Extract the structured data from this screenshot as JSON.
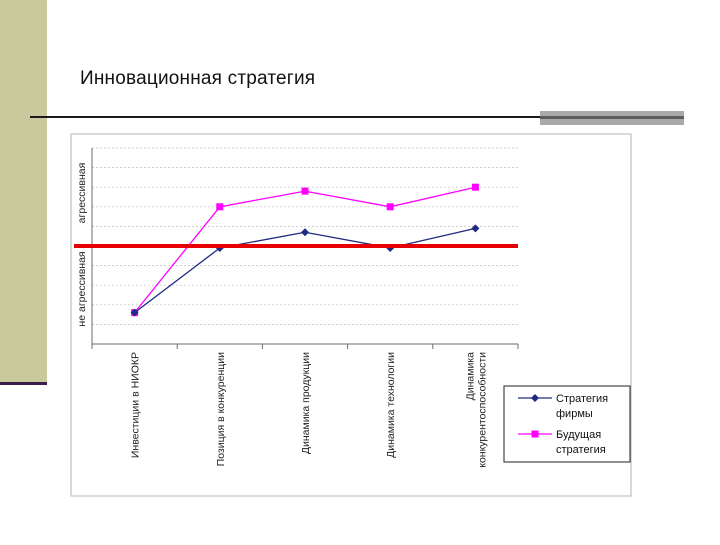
{
  "slide": {
    "title": "Инновационная стратегия"
  },
  "colors": {
    "series1": "#1f2a80",
    "series2": "#ff00ff",
    "baseline": "#e60000",
    "left_bar": "#c9c99d"
  },
  "chart_data": {
    "type": "line",
    "categories": [
      "Инвестиции в НИОКР",
      "Позиция в конкуренции",
      "Динамика продукции",
      "Динамика технологии",
      [
        "Динамика",
        "конкурентоспособности"
      ]
    ],
    "ylabel_low": "не агрессивная",
    "ylabel_high": "агрессивная",
    "ylim": [
      0,
      10
    ],
    "grid": true,
    "legend_position": "bottom-right",
    "series": [
      {
        "name": [
          "Стратегия",
          "фирмы"
        ],
        "marker": "diamond",
        "values": [
          1.6,
          4.9,
          5.7,
          4.9,
          5.9
        ]
      },
      {
        "name": [
          "Будущая",
          "стратегия"
        ],
        "marker": "square",
        "values": [
          1.6,
          7.0,
          7.8,
          7.0,
          8.0
        ]
      }
    ],
    "baseline": 5.0
  }
}
